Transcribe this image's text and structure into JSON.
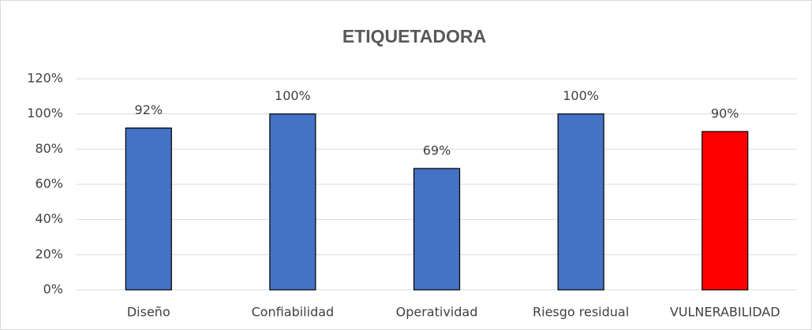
{
  "chart_data": {
    "type": "bar",
    "title": "ETIQUETADORA",
    "categories": [
      "Diseño",
      "Confiabilidad",
      "Operatividad",
      "Riesgo residual",
      "VULNERABILIDAD"
    ],
    "values": [
      92,
      100,
      69,
      100,
      90
    ],
    "value_labels": [
      "92%",
      "100%",
      "69%",
      "100%",
      "90%"
    ],
    "colors": [
      "#4472c4",
      "#4472c4",
      "#4472c4",
      "#4472c4",
      "#ff0000"
    ],
    "ylim": [
      0,
      120
    ],
    "yticks": [
      {
        "value": 0,
        "label": "0%"
      },
      {
        "value": 20,
        "label": "20%"
      },
      {
        "value": 40,
        "label": "40%"
      },
      {
        "value": 60,
        "label": "60%"
      },
      {
        "value": 80,
        "label": "80%"
      },
      {
        "value": 100,
        "label": "100%"
      },
      {
        "value": 120,
        "label": "120%"
      }
    ],
    "grid": true
  }
}
